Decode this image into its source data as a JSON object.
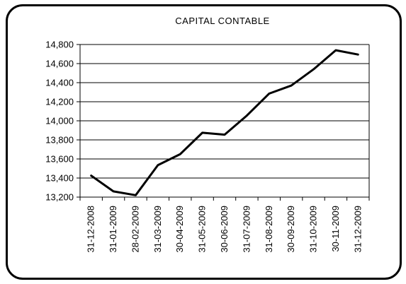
{
  "chart_data": {
    "type": "line",
    "title": "CAPITAL CONTABLE",
    "xlabel": "",
    "ylabel": "",
    "categories": [
      "31-12-2008",
      "31-01-2009",
      "28-02-2009",
      "31-03-2009",
      "30-04-2009",
      "31-05-2009",
      "30-06-2009",
      "31-07-2009",
      "31-08-2009",
      "30-09-2009",
      "31-10-2009",
      "30-11-2009",
      "31-12-2009"
    ],
    "series": [
      {
        "values": [
          13425,
          13260,
          13220,
          13535,
          13650,
          13875,
          13855,
          14055,
          14285,
          14370,
          14540,
          14740,
          14695
        ]
      }
    ],
    "ylim": [
      13200,
      14800
    ],
    "yticks": [
      13200,
      13400,
      13600,
      13800,
      14000,
      14200,
      14400,
      14600,
      14800
    ],
    "ytick_labels": [
      "13,200",
      "13,400",
      "13,600",
      "13,800",
      "14,000",
      "14,200",
      "14,400",
      "14,600",
      "14,800"
    ],
    "grid": true,
    "legend": "none",
    "line_color": "#000000"
  }
}
